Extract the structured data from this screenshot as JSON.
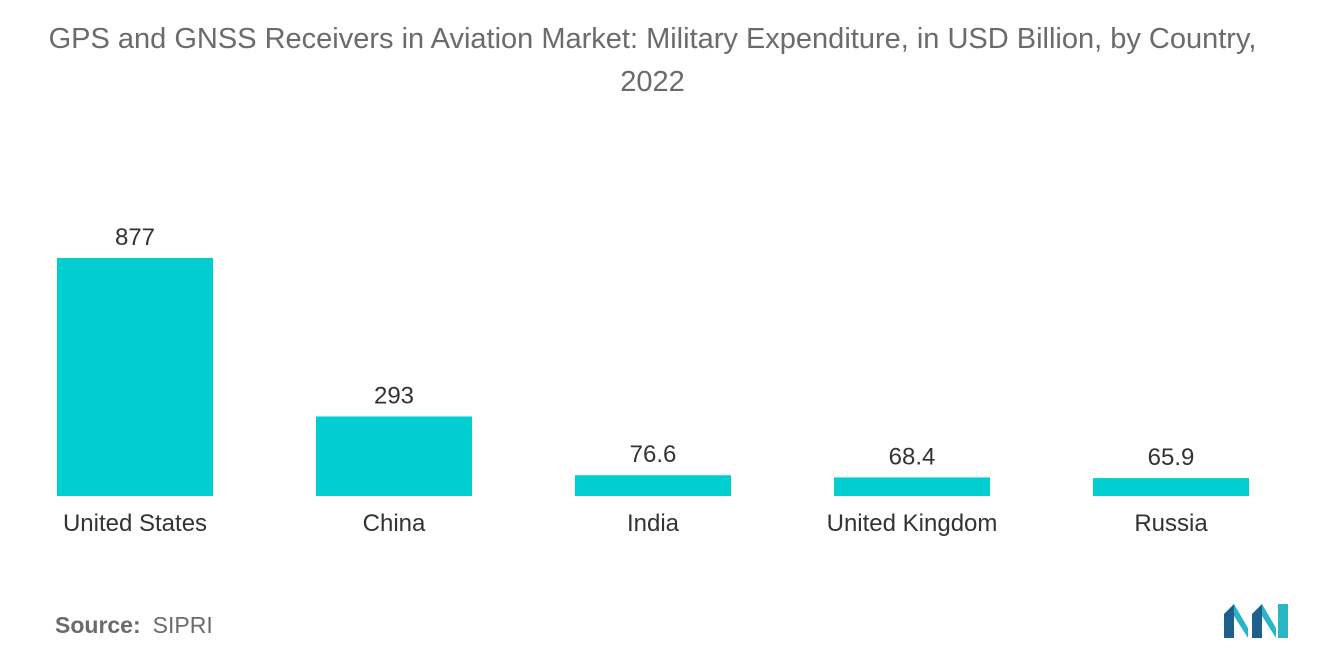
{
  "title": "GPS and GNSS Receivers in Aviation Market: Military Expenditure, in USD Billion, by Country, 2022",
  "source": {
    "label": "Source:",
    "value": "SIPRI"
  },
  "colors": {
    "bar": "#00CED1",
    "text": "#333333",
    "muted": "#6b6b6b",
    "logo_dark": "#1E5F8C",
    "logo_light": "#2AB5C6"
  },
  "logo_icon": "mordor-intelligence-logo-icon",
  "chart_data": {
    "type": "bar",
    "title": "GPS and GNSS Receivers in Aviation Market: Military Expenditure, in USD Billion, by Country, 2022",
    "categories": [
      "United States",
      "China",
      "India",
      "United Kingdom",
      "Russia"
    ],
    "values": [
      877,
      293,
      76.6,
      68.4,
      65.9
    ],
    "value_labels": [
      "877",
      "293",
      "76.6",
      "68.4",
      "65.9"
    ],
    "xlabel": "",
    "ylabel": "",
    "ylim": [
      0,
      877
    ],
    "grid": false,
    "legend": "none",
    "data_labels": "above-bars"
  }
}
